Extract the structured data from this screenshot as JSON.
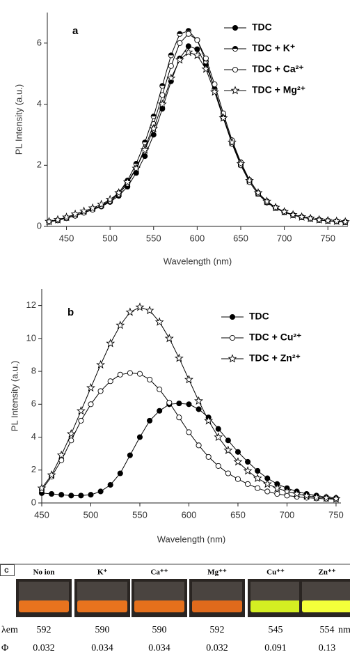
{
  "chart_data": [
    {
      "type": "line",
      "label": "a",
      "xlabel": "Wavelength (nm)",
      "ylabel": "PL Intensity (a.u.)",
      "x": [
        430,
        440,
        450,
        460,
        470,
        480,
        490,
        500,
        510,
        520,
        530,
        540,
        550,
        560,
        570,
        580,
        590,
        600,
        610,
        620,
        630,
        640,
        650,
        660,
        670,
        680,
        690,
        700,
        710,
        720,
        730,
        740,
        750,
        760,
        770
      ],
      "xlim": [
        428,
        773
      ],
      "xticks": [
        450,
        500,
        550,
        600,
        650,
        700,
        750
      ],
      "ylim": [
        0,
        7
      ],
      "yticks": [
        0,
        2,
        4,
        6
      ],
      "series": [
        {
          "name": "TDC",
          "color": "#000000",
          "marker": "filled",
          "values": [
            0.15,
            0.2,
            0.27,
            0.35,
            0.45,
            0.55,
            0.65,
            0.8,
            1.0,
            1.3,
            1.75,
            2.3,
            3.0,
            3.85,
            4.75,
            5.5,
            5.9,
            5.8,
            5.3,
            4.5,
            3.6,
            2.75,
            2.05,
            1.5,
            1.1,
            0.82,
            0.62,
            0.48,
            0.38,
            0.31,
            0.26,
            0.22,
            0.19,
            0.17,
            0.15
          ]
        },
        {
          "name": "TDC + K⁺",
          "color": "#000000",
          "marker": "half",
          "values": [
            0.15,
            0.2,
            0.28,
            0.36,
            0.46,
            0.56,
            0.68,
            0.85,
            1.1,
            1.5,
            2.05,
            2.75,
            3.6,
            4.6,
            5.6,
            6.3,
            6.4,
            6.1,
            5.4,
            4.5,
            3.55,
            2.7,
            2.0,
            1.45,
            1.05,
            0.78,
            0.6,
            0.46,
            0.37,
            0.3,
            0.25,
            0.21,
            0.18,
            0.16,
            0.14
          ]
        },
        {
          "name": "TDC + Ca²⁺",
          "color": "#000000",
          "marker": "open",
          "values": [
            0.15,
            0.2,
            0.27,
            0.35,
            0.45,
            0.55,
            0.67,
            0.83,
            1.05,
            1.4,
            1.9,
            2.55,
            3.35,
            4.3,
            5.25,
            6.0,
            6.3,
            6.1,
            5.5,
            4.65,
            3.7,
            2.82,
            2.1,
            1.52,
            1.1,
            0.8,
            0.6,
            0.47,
            0.37,
            0.3,
            0.25,
            0.21,
            0.18,
            0.16,
            0.14
          ]
        },
        {
          "name": "TDC + Mg²⁺",
          "color": "#000000",
          "marker": "star",
          "values": [
            0.16,
            0.22,
            0.3,
            0.4,
            0.5,
            0.6,
            0.72,
            0.88,
            1.1,
            1.45,
            1.9,
            2.5,
            3.2,
            4.0,
            4.85,
            5.45,
            5.7,
            5.6,
            5.15,
            4.4,
            3.55,
            2.75,
            2.05,
            1.5,
            1.1,
            0.82,
            0.62,
            0.48,
            0.38,
            0.31,
            0.26,
            0.22,
            0.19,
            0.17,
            0.15
          ]
        }
      ]
    },
    {
      "type": "line",
      "label": "b",
      "xlabel": "Wavelength (nm)",
      "ylabel": "PL Intensity (a.u.)",
      "x": [
        450,
        460,
        470,
        480,
        490,
        500,
        510,
        520,
        530,
        540,
        550,
        560,
        570,
        580,
        590,
        600,
        610,
        620,
        630,
        640,
        650,
        660,
        670,
        680,
        690,
        700,
        710,
        720,
        730,
        740,
        750
      ],
      "xlim": [
        450,
        755
      ],
      "xticks": [
        450,
        500,
        550,
        600,
        650,
        700,
        750
      ],
      "ylim": [
        0,
        13
      ],
      "yticks": [
        0,
        2,
        4,
        6,
        8,
        10,
        12
      ],
      "series": [
        {
          "name": "TDC",
          "color": "#000000",
          "marker": "filled",
          "values": [
            0.6,
            0.55,
            0.5,
            0.45,
            0.45,
            0.5,
            0.7,
            1.1,
            1.8,
            2.9,
            4.0,
            5.0,
            5.6,
            6.0,
            6.05,
            6.0,
            5.7,
            5.2,
            4.5,
            3.8,
            3.1,
            2.5,
            1.95,
            1.5,
            1.15,
            0.9,
            0.7,
            0.55,
            0.45,
            0.35,
            0.3
          ]
        },
        {
          "name": "TDC + Cu²⁺",
          "color": "#000000",
          "marker": "open",
          "values": [
            0.8,
            1.6,
            2.6,
            3.8,
            5.0,
            6.0,
            6.8,
            7.4,
            7.8,
            7.9,
            7.85,
            7.5,
            6.9,
            6.1,
            5.2,
            4.3,
            3.5,
            2.8,
            2.25,
            1.8,
            1.45,
            1.15,
            0.9,
            0.7,
            0.55,
            0.45,
            0.38,
            0.32,
            0.28,
            0.25,
            0.22
          ]
        },
        {
          "name": "TDC + Zn²⁺",
          "color": "#000000",
          "marker": "star",
          "values": [
            0.9,
            1.7,
            2.9,
            4.2,
            5.6,
            7.0,
            8.4,
            9.7,
            10.8,
            11.6,
            11.9,
            11.7,
            11.0,
            10.0,
            8.8,
            7.5,
            6.2,
            5.0,
            4.0,
            3.2,
            2.5,
            1.95,
            1.5,
            1.15,
            0.9,
            0.7,
            0.55,
            0.43,
            0.35,
            0.3,
            0.25
          ]
        }
      ]
    }
  ],
  "table": {
    "label": "c",
    "columns": [
      "No ion",
      "K⁺",
      "Ca⁺⁺",
      "Mg⁺⁺",
      "Cu⁺⁺",
      "Zn⁺⁺"
    ],
    "rows": [
      {
        "label": "λem",
        "values": [
          "592",
          "590",
          "590",
          "592",
          "545",
          "554"
        ],
        "unit": "nm"
      },
      {
        "label": "Φ",
        "values": [
          "0.032",
          "0.034",
          "0.034",
          "0.032",
          "0.091",
          "0.13"
        ]
      }
    ]
  }
}
